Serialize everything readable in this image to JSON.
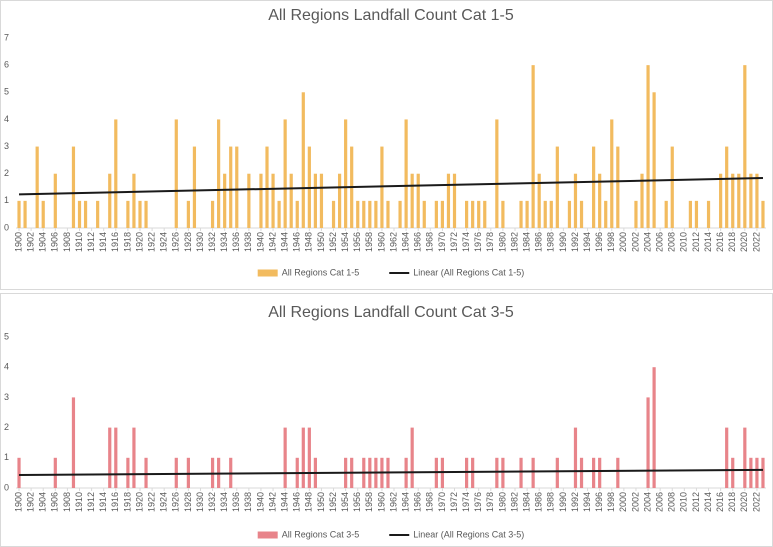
{
  "chart_data": [
    {
      "type": "bar",
      "title": "All Regions Landfall Count Cat 1-5",
      "x": [
        1900,
        1901,
        1902,
        1903,
        1904,
        1905,
        1906,
        1907,
        1908,
        1909,
        1910,
        1911,
        1912,
        1913,
        1914,
        1915,
        1916,
        1917,
        1918,
        1919,
        1920,
        1921,
        1922,
        1923,
        1924,
        1925,
        1926,
        1927,
        1928,
        1929,
        1930,
        1931,
        1932,
        1933,
        1934,
        1935,
        1936,
        1937,
        1938,
        1939,
        1940,
        1941,
        1942,
        1943,
        1944,
        1945,
        1946,
        1947,
        1948,
        1949,
        1950,
        1951,
        1952,
        1953,
        1954,
        1955,
        1956,
        1957,
        1958,
        1959,
        1960,
        1961,
        1962,
        1963,
        1964,
        1965,
        1966,
        1967,
        1968,
        1969,
        1970,
        1971,
        1972,
        1973,
        1974,
        1975,
        1976,
        1977,
        1978,
        1979,
        1980,
        1981,
        1982,
        1983,
        1984,
        1985,
        1986,
        1987,
        1988,
        1989,
        1990,
        1991,
        1992,
        1993,
        1994,
        1995,
        1996,
        1997,
        1998,
        1999,
        2000,
        2001,
        2002,
        2003,
        2004,
        2005,
        2006,
        2007,
        2008,
        2009,
        2010,
        2011,
        2012,
        2013,
        2014,
        2015,
        2016,
        2017,
        2018,
        2019,
        2020,
        2021,
        2022,
        2023
      ],
      "series": [
        {
          "name": "All Regions Cat 1-5",
          "color": "#f2bb5f",
          "values": [
            1,
            1,
            0,
            3,
            1,
            0,
            2,
            0,
            0,
            3,
            1,
            1,
            0,
            1,
            0,
            2,
            4,
            0,
            1,
            2,
            1,
            1,
            0,
            0,
            0,
            0,
            4,
            0,
            1,
            3,
            0,
            0,
            1,
            4,
            2,
            3,
            3,
            0,
            2,
            0,
            2,
            3,
            2,
            1,
            4,
            2,
            1,
            5,
            3,
            2,
            2,
            0,
            1,
            2,
            4,
            3,
            1,
            1,
            1,
            1,
            3,
            1,
            0,
            1,
            4,
            2,
            2,
            1,
            0,
            1,
            1,
            2,
            2,
            0,
            1,
            1,
            1,
            1,
            0,
            4,
            1,
            0,
            0,
            1,
            1,
            6,
            2,
            1,
            1,
            3,
            0,
            1,
            2,
            1,
            0,
            3,
            2,
            1,
            4,
            3,
            0,
            0,
            1,
            2,
            6,
            5,
            0,
            1,
            3,
            0,
            0,
            1,
            1,
            0,
            1,
            0,
            2,
            3,
            2,
            2,
            6,
            2,
            2,
            1
          ]
        },
        {
          "name": "Linear (All Regions Cat 1-5)",
          "color": "#1a1a1a",
          "type": "line",
          "x": [
            1900,
            2023
          ],
          "values": [
            1.24,
            1.84
          ]
        }
      ],
      "xlim": [
        1899.5,
        2023.5
      ],
      "xticks": [
        1900,
        1902,
        1904,
        1906,
        1908,
        1910,
        1912,
        1914,
        1916,
        1918,
        1920,
        1922,
        1924,
        1926,
        1928,
        1930,
        1932,
        1934,
        1936,
        1938,
        1940,
        1942,
        1944,
        1946,
        1948,
        1950,
        1952,
        1954,
        1956,
        1958,
        1960,
        1962,
        1964,
        1966,
        1968,
        1970,
        1972,
        1974,
        1976,
        1978,
        1980,
        1982,
        1984,
        1986,
        1988,
        1990,
        1992,
        1994,
        1996,
        1998,
        2000,
        2002,
        2004,
        2006,
        2008,
        2010,
        2012,
        2014,
        2016,
        2018,
        2020,
        2022
      ],
      "ylim": [
        0,
        7
      ],
      "yticks": [
        0,
        1,
        2,
        3,
        4,
        5,
        6,
        7
      ],
      "grid": false,
      "legend": "bottom"
    },
    {
      "type": "bar",
      "title": "All Regions Landfall Count Cat 3-5",
      "x": [
        1900,
        1901,
        1902,
        1903,
        1904,
        1905,
        1906,
        1907,
        1908,
        1909,
        1910,
        1911,
        1912,
        1913,
        1914,
        1915,
        1916,
        1917,
        1918,
        1919,
        1920,
        1921,
        1922,
        1923,
        1924,
        1925,
        1926,
        1927,
        1928,
        1929,
        1930,
        1931,
        1932,
        1933,
        1934,
        1935,
        1936,
        1937,
        1938,
        1939,
        1940,
        1941,
        1942,
        1943,
        1944,
        1945,
        1946,
        1947,
        1948,
        1949,
        1950,
        1951,
        1952,
        1953,
        1954,
        1955,
        1956,
        1957,
        1958,
        1959,
        1960,
        1961,
        1962,
        1963,
        1964,
        1965,
        1966,
        1967,
        1968,
        1969,
        1970,
        1971,
        1972,
        1973,
        1974,
        1975,
        1976,
        1977,
        1978,
        1979,
        1980,
        1981,
        1982,
        1983,
        1984,
        1985,
        1986,
        1987,
        1988,
        1989,
        1990,
        1991,
        1992,
        1993,
        1994,
        1995,
        1996,
        1997,
        1998,
        1999,
        2000,
        2001,
        2002,
        2003,
        2004,
        2005,
        2006,
        2007,
        2008,
        2009,
        2010,
        2011,
        2012,
        2013,
        2014,
        2015,
        2016,
        2017,
        2018,
        2019,
        2020,
        2021,
        2022,
        2023
      ],
      "series": [
        {
          "name": "All Regions Cat 3-5",
          "color": "#e8848a",
          "values": [
            1,
            0,
            0,
            0,
            0,
            0,
            1,
            0,
            0,
            3,
            0,
            0,
            0,
            0,
            0,
            2,
            2,
            0,
            1,
            2,
            0,
            1,
            0,
            0,
            0,
            0,
            1,
            0,
            1,
            0,
            0,
            0,
            1,
            1,
            0,
            1,
            0,
            0,
            0,
            0,
            0,
            0,
            0,
            0,
            2,
            0,
            1,
            2,
            2,
            1,
            0,
            0,
            0,
            0,
            1,
            1,
            0,
            1,
            1,
            1,
            1,
            1,
            0,
            0,
            1,
            2,
            0,
            0,
            0,
            1,
            1,
            0,
            0,
            0,
            1,
            1,
            0,
            0,
            0,
            1,
            1,
            0,
            0,
            1,
            0,
            1,
            0,
            0,
            0,
            1,
            0,
            0,
            2,
            1,
            0,
            1,
            1,
            0,
            0,
            1,
            0,
            0,
            0,
            0,
            3,
            4,
            0,
            0,
            0,
            0,
            0,
            0,
            0,
            0,
            0,
            0,
            0,
            2,
            1,
            0,
            2,
            1,
            1,
            1
          ]
        },
        {
          "name": "Linear (All Regions Cat 3-5)",
          "color": "#1a1a1a",
          "type": "line",
          "x": [
            1900,
            2023
          ],
          "values": [
            0.43,
            0.6
          ]
        }
      ],
      "xlim": [
        1899.5,
        2023.5
      ],
      "xticks": [
        1900,
        1902,
        1904,
        1906,
        1908,
        1910,
        1912,
        1914,
        1916,
        1918,
        1920,
        1922,
        1924,
        1926,
        1928,
        1930,
        1932,
        1934,
        1936,
        1938,
        1940,
        1942,
        1944,
        1946,
        1948,
        1950,
        1952,
        1954,
        1956,
        1958,
        1960,
        1962,
        1964,
        1966,
        1968,
        1970,
        1972,
        1974,
        1976,
        1978,
        1980,
        1982,
        1984,
        1986,
        1988,
        1990,
        1992,
        1994,
        1996,
        1998,
        2000,
        2002,
        2004,
        2006,
        2008,
        2010,
        2012,
        2014,
        2016,
        2018,
        2020,
        2022
      ],
      "ylim": [
        0,
        5
      ],
      "yticks": [
        0,
        1,
        2,
        3,
        4,
        5
      ],
      "grid": false,
      "legend": "bottom"
    }
  ]
}
